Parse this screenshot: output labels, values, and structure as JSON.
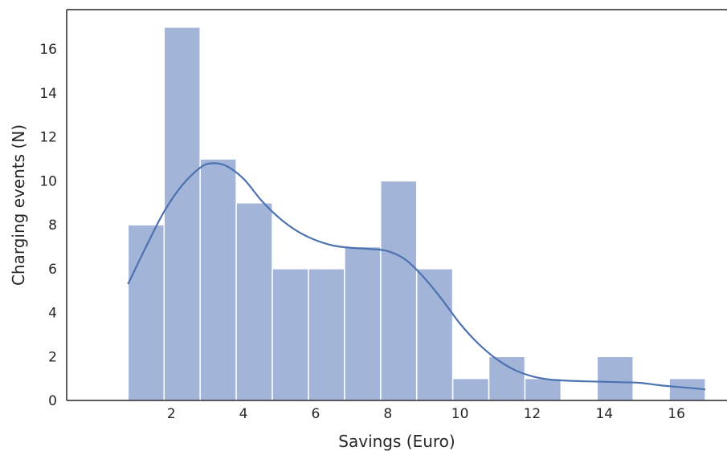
{
  "chart_data": {
    "type": "bar",
    "subtype": "histogram-with-kde",
    "xlabel": "Savings (Euro)",
    "ylabel": "Charging events (N)",
    "xlim": [
      -0.9,
      17.4
    ],
    "ylim": [
      0,
      17.8
    ],
    "xticks": [
      2,
      4,
      6,
      8,
      10,
      12,
      14,
      16
    ],
    "yticks": [
      0,
      2,
      4,
      6,
      8,
      10,
      12,
      14,
      16
    ],
    "grid": false,
    "bin_edges": [
      0.8,
      1.8,
      2.8,
      3.8,
      4.8,
      5.8,
      6.8,
      7.8,
      8.8,
      9.8,
      10.8,
      11.8,
      12.8,
      13.8,
      14.8,
      15.8,
      16.8
    ],
    "counts": [
      8,
      17,
      11,
      9,
      6,
      6,
      7,
      10,
      6,
      1,
      2,
      1,
      0,
      2,
      0,
      1
    ],
    "bar_color": "#a3b4d9",
    "bar_edge_color": "#ffffff",
    "kde": {
      "color": "#4c72b0",
      "x": [
        0.8,
        1.3,
        1.8,
        2.3,
        2.8,
        3.1,
        3.5,
        4.0,
        4.5,
        5.0,
        5.5,
        6.0,
        6.5,
        7.0,
        7.5,
        8.0,
        8.5,
        9.0,
        9.5,
        10.0,
        10.5,
        11.0,
        11.5,
        12.0,
        12.5,
        13.0,
        13.5,
        14.0,
        14.5,
        15.0,
        15.5,
        16.0,
        16.5,
        16.8
      ],
      "y": [
        5.3,
        7.0,
        8.6,
        9.8,
        10.6,
        10.8,
        10.7,
        10.1,
        9.1,
        8.3,
        7.7,
        7.3,
        7.05,
        6.95,
        6.9,
        6.8,
        6.4,
        5.6,
        4.6,
        3.5,
        2.6,
        1.9,
        1.4,
        1.1,
        0.95,
        0.9,
        0.87,
        0.85,
        0.83,
        0.8,
        0.7,
        0.62,
        0.55,
        0.5
      ]
    }
  }
}
